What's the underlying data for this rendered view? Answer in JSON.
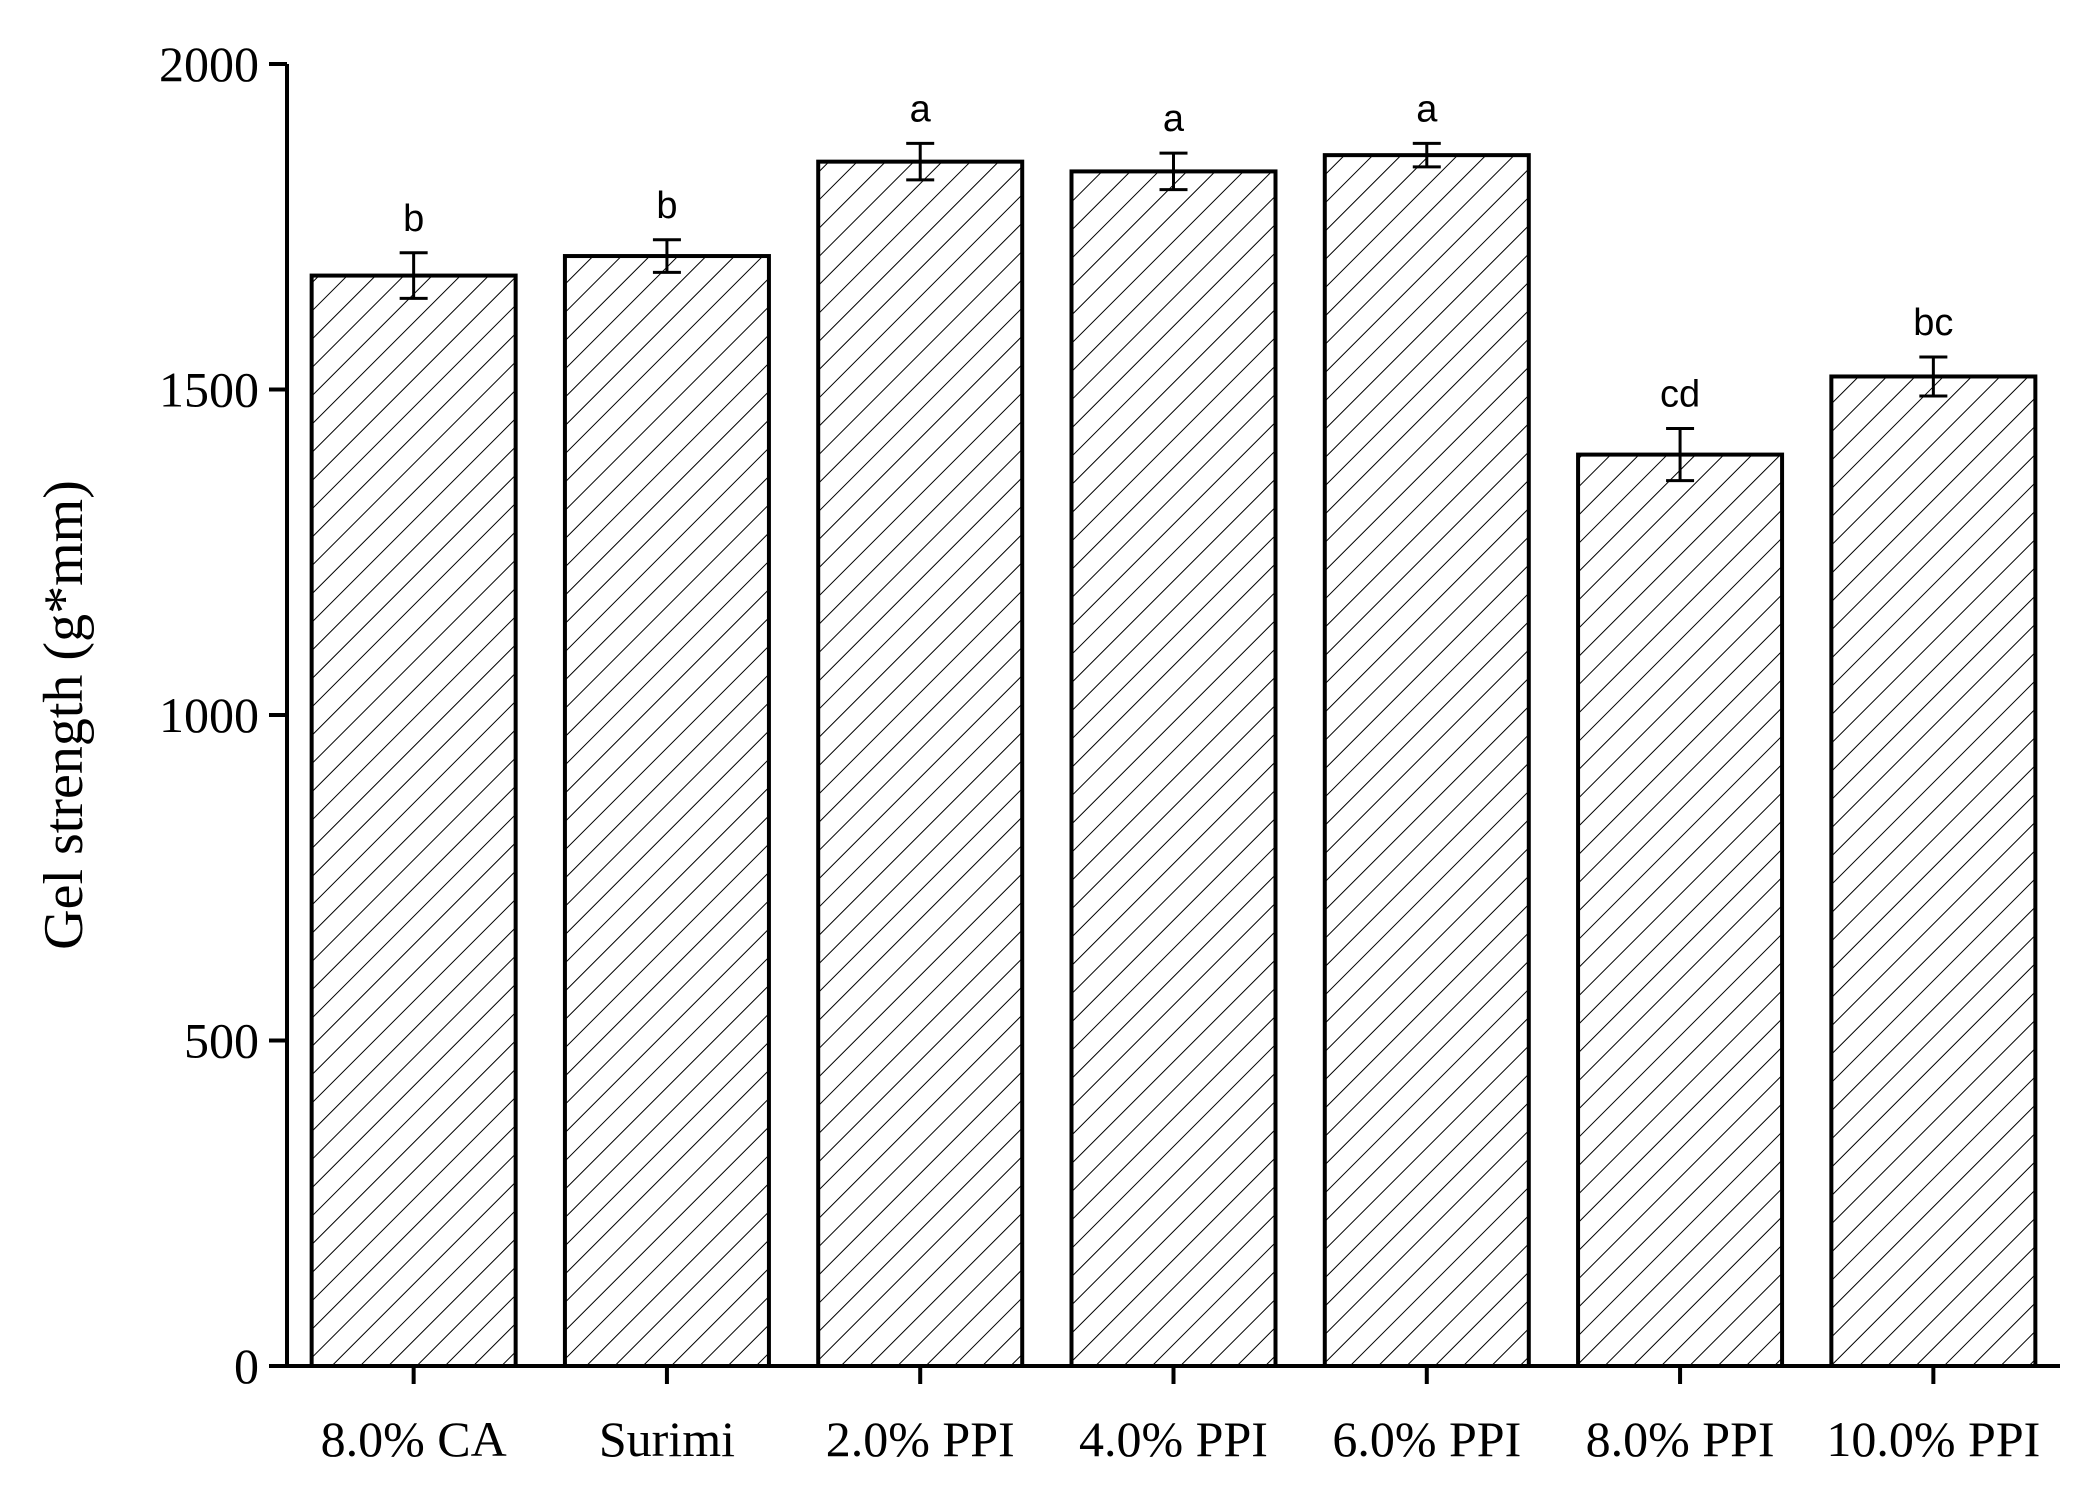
{
  "chart_data": {
    "type": "bar",
    "categories": [
      "8.0% CA",
      "Surimi",
      "2.0% PPI",
      "4.0% PPI",
      "6.0% PPI",
      "8.0% PPI",
      "10.0% PPI"
    ],
    "values": [
      1675,
      1705,
      1850,
      1835,
      1860,
      1400,
      1520
    ],
    "errors": [
      35,
      25,
      28,
      28,
      18,
      40,
      30
    ],
    "significance_letters": [
      "b",
      "b",
      "a",
      "a",
      "a",
      "cd",
      "bc"
    ],
    "ylabel": "Gel strength (g*mm)",
    "xlabel": "",
    "ylim": [
      0,
      2000
    ],
    "yticks": [
      "0",
      "500",
      "1000",
      "1500",
      "2000"
    ],
    "bar_fill": "diagonal-hatch",
    "bar_color": "#ffffff",
    "edge_color": "#000000",
    "grid": false,
    "legend": false
  }
}
